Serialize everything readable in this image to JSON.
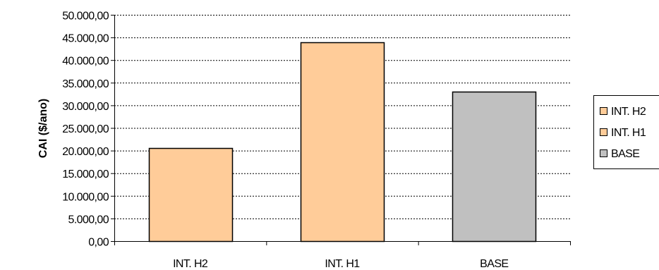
{
  "chart_data": {
    "type": "bar",
    "title": "",
    "xlabel": "",
    "ylabel": "CAI ($/ano)",
    "categories": [
      "INT. H2",
      "INT. H1",
      "BASE"
    ],
    "values": [
      20500,
      44000,
      33000
    ],
    "bar_colors": [
      "#FFCC99",
      "#FFCC99",
      "#C0C0C0"
    ],
    "ylim": [
      0,
      50000
    ],
    "yticks": [
      {
        "value": 0,
        "label": "0,00"
      },
      {
        "value": 5000,
        "label": "5.000,00"
      },
      {
        "value": 10000,
        "label": "10.000,00"
      },
      {
        "value": 15000,
        "label": "15.000,00"
      },
      {
        "value": 20000,
        "label": "20.000,00"
      },
      {
        "value": 25000,
        "label": "25.000,00"
      },
      {
        "value": 30000,
        "label": "30.000,00"
      },
      {
        "value": 35000,
        "label": "35.000,00"
      },
      {
        "value": 40000,
        "label": "40.000,00"
      },
      {
        "value": 45000,
        "label": "45.000,00"
      },
      {
        "value": 50000,
        "label": "50.000,00"
      }
    ],
    "grid": true,
    "grid_style": "dashed",
    "legend_position": "right",
    "legend": [
      {
        "label": "INT. H2",
        "color": "#FFCC99"
      },
      {
        "label": "INT. H1",
        "color": "#FFCC99"
      },
      {
        "label": "BASE",
        "color": "#C0C0C0"
      }
    ]
  }
}
